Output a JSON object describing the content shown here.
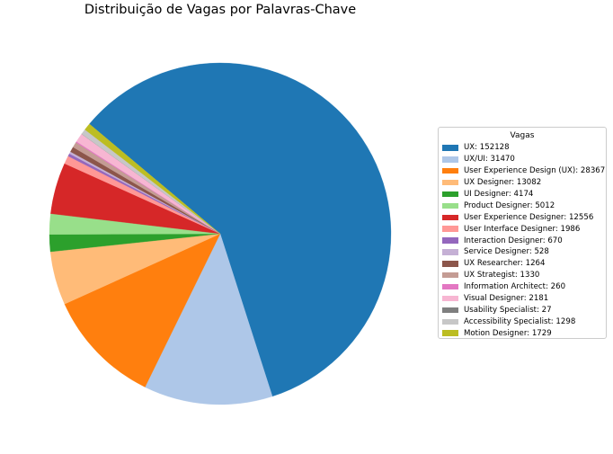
{
  "chart_data": {
    "type": "pie",
    "title": "Distribuição de Vagas por Palavras-Chave",
    "legend_title": "Vagas",
    "legend_placement": "right",
    "start_angle_deg": 140,
    "direction": "clockwise",
    "slices": [
      {
        "label": "UX: 152128",
        "name": "UX",
        "value": 152128,
        "color": "#1f77b4"
      },
      {
        "label": "UX/UI: 31470",
        "name": "UX/UI",
        "value": 31470,
        "color": "#aec7e8"
      },
      {
        "label": "User Experience Design (UX): 28367",
        "name": "User Experience Design (UX)",
        "value": 28367,
        "color": "#ff7f0e"
      },
      {
        "label": "UX Designer: 13082",
        "name": "UX Designer",
        "value": 13082,
        "color": "#ffbb78"
      },
      {
        "label": "UI Designer: 4174",
        "name": "UI Designer",
        "value": 4174,
        "color": "#2ca02c"
      },
      {
        "label": "Product Designer: 5012",
        "name": "Product Designer",
        "value": 5012,
        "color": "#98df8a"
      },
      {
        "label": "User Experience Designer: 12556",
        "name": "User Experience Designer",
        "value": 12556,
        "color": "#d62728"
      },
      {
        "label": "User Interface Designer: 1986",
        "name": "User Interface Designer",
        "value": 1986,
        "color": "#ff9896"
      },
      {
        "label": "Interaction Designer: 670",
        "name": "Interaction Designer",
        "value": 670,
        "color": "#9467bd"
      },
      {
        "label": "Service Designer: 528",
        "name": "Service Designer",
        "value": 528,
        "color": "#c5b0d5"
      },
      {
        "label": "UX Researcher: 1264",
        "name": "UX Researcher",
        "value": 1264,
        "color": "#8c564b"
      },
      {
        "label": "UX Strategist: 1330",
        "name": "UX Strategist",
        "value": 1330,
        "color": "#c49c94"
      },
      {
        "label": "Information Architect: 260",
        "name": "Information Architect",
        "value": 260,
        "color": "#e377c2"
      },
      {
        "label": "Visual Designer: 2181",
        "name": "Visual Designer",
        "value": 2181,
        "color": "#f7b6d2"
      },
      {
        "label": "Usability Specialist: 27",
        "name": "Usability Specialist",
        "value": 27,
        "color": "#7f7f7f"
      },
      {
        "label": "Accessibility Specialist: 1298",
        "name": "Accessibility Specialist",
        "value": 1298,
        "color": "#c7c7c7"
      },
      {
        "label": "Motion Designer: 1729",
        "name": "Motion Designer",
        "value": 1729,
        "color": "#bcbd22"
      }
    ]
  }
}
